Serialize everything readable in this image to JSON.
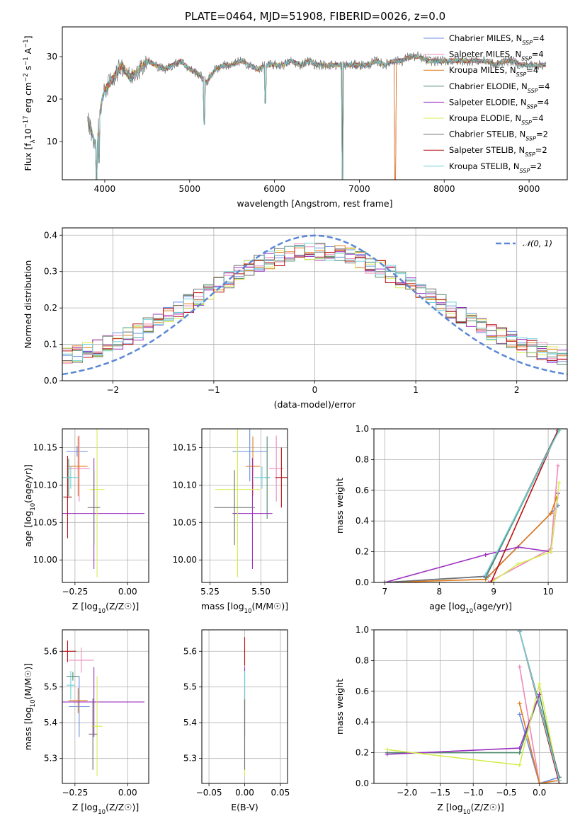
{
  "figure": {
    "title": "PLATE=0464, MJD=51908, FIBERID=0026, z=0.0"
  },
  "series_names": [
    "Chabrier MILES, N_SSP=4",
    "Salpeter MILES, N_SSP=4",
    "Kroupa MILES, N_SSP=4",
    "Chabrier ELODIE, N_SSP=4",
    "Salpeter ELODIE, N_SSP=4",
    "Kroupa ELODIE, N_SSP=4",
    "Chabrier STELIB, N_SSP=2",
    "Salpeter STELIB, N_SSP=2",
    "Kroupa STELIB, N_SSP=2"
  ],
  "colors": [
    "#6a8ee0",
    "#ee88bb",
    "#e07b1a",
    "#4b8a6a",
    "#9b30c0",
    "#d6ec50",
    "#707070",
    "#b81212",
    "#70d0d8"
  ],
  "chart_data": [
    {
      "id": "spectrum",
      "type": "line",
      "title": "PLATE=0464, MJD=51908, FIBERID=0026, z=0.0",
      "xlabel": "wavelength [Angstrom, rest frame]",
      "ylabel": "Flux [f_λ10^-17 erg cm^-2 s^-1 A^-1]",
      "xlim": [
        3500,
        9450
      ],
      "ylim": [
        1,
        37
      ],
      "xticks": [
        4000,
        5000,
        6000,
        7000,
        8000,
        9000
      ],
      "yticks": [
        10,
        20,
        30
      ],
      "grid": false,
      "legend": "top-right",
      "legend_entries": [
        "Chabrier MILES, N_SSP=4",
        "Salpeter MILES, N_SSP=4",
        "Kroupa MILES, N_SSP=4",
        "Chabrier ELODIE, N_SSP=4",
        "Salpeter ELODIE, N_SSP=4",
        "Kroupa ELODIE, N_SSP=4",
        "Chabrier STELIB, N_SSP=2",
        "Salpeter STELIB, N_SSP=2",
        "Kroupa STELIB, N_SSP=2"
      ],
      "x": [
        3800,
        3850,
        3900,
        3950,
        4000,
        4100,
        4200,
        4300,
        4400,
        4500,
        4600,
        4700,
        4800,
        4900,
        5000,
        5100,
        5200,
        5300,
        5400,
        5500,
        5600,
        5700,
        5800,
        5900,
        6000,
        6100,
        6200,
        6300,
        6400,
        6500,
        6600,
        6700,
        6800,
        6900,
        7000,
        7100,
        7200,
        7300,
        7400,
        7500,
        7600,
        7700,
        7800,
        7900,
        8000,
        8100,
        8200,
        8300,
        8400,
        8500,
        8600,
        8700,
        8800,
        8900,
        9000,
        9100,
        9200
      ],
      "y": [
        15,
        12,
        8,
        18,
        22,
        25,
        28,
        25,
        27,
        29,
        28,
        27,
        28,
        29,
        27,
        26,
        24,
        27,
        28,
        28,
        29,
        28,
        27,
        28,
        28,
        28,
        29,
        28,
        29,
        28,
        28,
        28,
        28,
        28,
        28,
        28,
        29,
        28,
        29,
        29,
        30,
        30,
        29,
        29,
        29,
        29,
        29,
        29,
        29,
        29,
        28,
        29,
        29,
        28,
        28,
        28,
        28
      ],
      "dips": [
        [
          3900,
          1
        ],
        [
          3933,
          5
        ],
        [
          5170,
          14
        ],
        [
          5890,
          19
        ],
        [
          6800,
          1
        ],
        [
          7420,
          1
        ]
      ]
    },
    {
      "id": "residuals",
      "type": "line",
      "xlabel": "(data-model)/error",
      "ylabel": "Normed distribution",
      "xlim": [
        -2.5,
        2.5
      ],
      "ylim": [
        0,
        0.42
      ],
      "xticks": [
        -2,
        -1,
        0,
        1,
        2
      ],
      "yticks": [
        0.0,
        0.1,
        0.2,
        0.3,
        0.4
      ],
      "grid": true,
      "legend": "top-right",
      "legend_entries": [
        "𝒩(0, 1)"
      ],
      "gaussian": {
        "mean": 0,
        "sigma": 1
      },
      "histogram_bin_width": 0.1,
      "histogram_shape": {
        "peak": 0.32,
        "sigma": 1.15,
        "floor": 0.035
      }
    },
    {
      "id": "age-vs-Z",
      "type": "scatter",
      "xlabel": "Z [log10(Z/Z☉)]",
      "ylabel": "age  [log10(age/yr)]",
      "xlim": [
        -0.31,
        0.1
      ],
      "ylim": [
        9.97,
        10.175
      ],
      "xticks": [
        -0.25,
        0.0
      ],
      "yticks": [
        10.0,
        10.05,
        10.1,
        10.15
      ],
      "grid": true,
      "points": [
        {
          "series": 0,
          "x": -0.24,
          "y": 10.145,
          "xerr": 0.05,
          "yerr": 0.007
        },
        {
          "series": 1,
          "x": -0.23,
          "y": 10.122,
          "xerr": 0.05,
          "yerr": 0.044
        },
        {
          "series": 2,
          "x": -0.235,
          "y": 10.125,
          "xerr": 0.045,
          "yerr": 0.04
        },
        {
          "series": 3,
          "x": -0.28,
          "y": 10.11,
          "xerr": 0.013,
          "yerr": 0.025
        },
        {
          "series": 4,
          "x": -0.16,
          "y": 10.062,
          "xerr": 0.24,
          "yerr": 0.074
        },
        {
          "series": 5,
          "x": -0.145,
          "y": 10.094,
          "xerr": 0.035,
          "yerr": 0.117
        },
        {
          "series": 6,
          "x": -0.16,
          "y": 10.07,
          "xerr": 0.03,
          "yerr": 0.05
        },
        {
          "series": 7,
          "x": -0.285,
          "y": 10.084,
          "xerr": 0.02,
          "yerr": 0.055
        },
        {
          "series": 8,
          "x": -0.27,
          "y": 10.11,
          "xerr": 0.04,
          "yerr": 0.015
        }
      ]
    },
    {
      "id": "age-vs-mass",
      "type": "scatter",
      "xlabel": "mass [log10(M/M☉)]",
      "ylabel": "",
      "xlim": [
        5.21,
        5.63
      ],
      "ylim": [
        9.97,
        10.175
      ],
      "xticks": [
        5.25,
        5.5
      ],
      "yticks": [
        10.0,
        10.05,
        10.1,
        10.15
      ],
      "grid": true,
      "points": [
        {
          "series": 0,
          "x": 5.445,
          "y": 10.145,
          "xerr": 0.085,
          "yerr": 0.04
        },
        {
          "series": 1,
          "x": 5.575,
          "y": 10.122,
          "xerr": 0.035,
          "yerr": 0.044
        },
        {
          "series": 2,
          "x": 5.46,
          "y": 10.125,
          "xerr": 0.035,
          "yerr": 0.04
        },
        {
          "series": 3,
          "x": 5.53,
          "y": 10.11,
          "xerr": 0.012,
          "yerr": 0.055
        },
        {
          "series": 4,
          "x": 5.458,
          "y": 10.062,
          "xerr": 0.098,
          "yerr": 0.074
        },
        {
          "series": 5,
          "x": 5.385,
          "y": 10.094,
          "xerr": 0.11,
          "yerr": 0.117
        },
        {
          "series": 6,
          "x": 5.37,
          "y": 10.07,
          "xerr": 0.1,
          "yerr": 0.05
        },
        {
          "series": 7,
          "x": 5.6,
          "y": 10.11,
          "xerr": 0.03,
          "yerr": 0.04
        },
        {
          "series": 8,
          "x": 5.505,
          "y": 10.11,
          "xerr": 0.04,
          "yerr": 0.015
        }
      ]
    },
    {
      "id": "massweight-vs-age",
      "type": "line",
      "xlabel": "age  [log10(age/yr)]",
      "ylabel": "mass weight",
      "xlim": [
        6.8,
        10.35
      ],
      "ylim": [
        0,
        1.0
      ],
      "xticks": [
        7,
        8,
        9,
        10
      ],
      "yticks": [
        0.0,
        0.2,
        0.4,
        0.6,
        0.8,
        1.0
      ],
      "grid": true,
      "series": [
        {
          "series": 0,
          "x": [
            7.0,
            8.9,
            10.05,
            10.18
          ],
          "y": [
            0.0,
            0.04,
            0.45,
            0.5
          ]
        },
        {
          "series": 1,
          "x": [
            8.9,
            10.05,
            10.18
          ],
          "y": [
            0.0,
            0.22,
            0.76
          ]
        },
        {
          "series": 2,
          "x": [
            7.0,
            8.85,
            10.05,
            10.15
          ],
          "y": [
            0.0,
            0.02,
            0.45,
            0.55
          ]
        },
        {
          "series": 3,
          "x": [
            8.85,
            10.18
          ],
          "y": [
            0.03,
            0.98
          ]
        },
        {
          "series": 4,
          "x": [
            7.0,
            8.85,
            9.45,
            10.05,
            10.18
          ],
          "y": [
            0.0,
            0.18,
            0.23,
            0.2,
            0.58
          ]
        },
        {
          "series": 5,
          "x": [
            8.95,
            9.45,
            10.05,
            10.2
          ],
          "y": [
            0.0,
            0.12,
            0.2,
            0.65
          ]
        },
        {
          "series": 6,
          "x": [
            7.0,
            8.85,
            10.18
          ],
          "y": [
            0.0,
            0.04,
            0.99
          ]
        },
        {
          "series": 7,
          "x": [
            8.95,
            10.18
          ],
          "y": [
            0.0,
            0.99
          ]
        },
        {
          "series": 8,
          "x": [
            8.85,
            10.2
          ],
          "y": [
            0.05,
            0.99
          ]
        }
      ]
    },
    {
      "id": "mass-vs-Z",
      "type": "scatter",
      "xlabel": "Z [log10(Z/Z☉)]",
      "ylabel": "mass [log10(M/M☉)]",
      "xlim": [
        -0.31,
        0.1
      ],
      "ylim": [
        5.23,
        5.66
      ],
      "xticks": [
        -0.25,
        0.0
      ],
      "yticks": [
        5.3,
        5.4,
        5.5,
        5.6
      ],
      "grid": true,
      "points": [
        {
          "series": 0,
          "x": -0.23,
          "y": 5.445,
          "xerr": 0.05,
          "yerr": 0.085
        },
        {
          "series": 1,
          "x": -0.22,
          "y": 5.575,
          "xerr": 0.06,
          "yerr": 0.035
        },
        {
          "series": 2,
          "x": -0.235,
          "y": 5.462,
          "xerr": 0.045,
          "yerr": 0.035
        },
        {
          "series": 3,
          "x": -0.26,
          "y": 5.53,
          "xerr": 0.03,
          "yerr": 0.012
        },
        {
          "series": 4,
          "x": -0.16,
          "y": 5.458,
          "xerr": 0.24,
          "yerr": 0.098
        },
        {
          "series": 5,
          "x": -0.145,
          "y": 5.39,
          "xerr": 0.025,
          "yerr": 0.14
        },
        {
          "series": 6,
          "x": -0.165,
          "y": 5.368,
          "xerr": 0.02,
          "yerr": 0.1
        },
        {
          "series": 7,
          "x": -0.285,
          "y": 5.6,
          "xerr": 0.04,
          "yerr": 0.03
        },
        {
          "series": 8,
          "x": -0.27,
          "y": 5.505,
          "xerr": 0.02,
          "yerr": 0.04
        }
      ]
    },
    {
      "id": "mass-vs-EBV",
      "type": "scatter",
      "xlabel": "E(B-V)",
      "ylabel": "",
      "xlim": [
        -0.06,
        0.06
      ],
      "ylim": [
        5.23,
        5.66
      ],
      "xticks": [
        -0.05,
        0.0,
        0.05
      ],
      "yticks": [
        5.3,
        5.4,
        5.5,
        5.6
      ],
      "grid": true,
      "points": [
        {
          "series": 0,
          "x": 0.0,
          "y": 5.445,
          "xerr": 0,
          "yerr": 0.085
        },
        {
          "series": 1,
          "x": 0.0,
          "y": 5.575,
          "xerr": 0,
          "yerr": 0.035
        },
        {
          "series": 2,
          "x": 0.0,
          "y": 5.462,
          "xerr": 0,
          "yerr": 0.035
        },
        {
          "series": 3,
          "x": 0.0,
          "y": 5.53,
          "xerr": 0,
          "yerr": 0.012
        },
        {
          "series": 4,
          "x": 0.0,
          "y": 5.458,
          "xerr": 0,
          "yerr": 0.098
        },
        {
          "series": 5,
          "x": 0.0,
          "y": 5.39,
          "xerr": 0,
          "yerr": 0.14
        },
        {
          "series": 6,
          "x": 0.0,
          "y": 5.368,
          "xerr": 0,
          "yerr": 0.1
        },
        {
          "series": 7,
          "x": 0.0,
          "y": 5.6,
          "xerr": 0,
          "yerr": 0.04
        },
        {
          "series": 8,
          "x": 0.0,
          "y": 5.505,
          "xerr": 0,
          "yerr": 0.04
        }
      ]
    },
    {
      "id": "massweight-vs-Z",
      "type": "line",
      "xlabel": "Z [log10(Z/Z☉)]",
      "ylabel": "mass weight",
      "xlim": [
        -2.5,
        0.42
      ],
      "ylim": [
        0,
        1.0
      ],
      "xticks": [
        -2.0,
        -1.5,
        -1.0,
        -0.5,
        0.0
      ],
      "yticks": [
        0.0,
        0.2,
        0.4,
        0.6,
        0.8,
        1.0
      ],
      "grid": true,
      "series": [
        {
          "series": 0,
          "x": [
            -0.3,
            0.0,
            0.3
          ],
          "y": [
            0.45,
            0.0,
            0.04
          ]
        },
        {
          "series": 1,
          "x": [
            -0.3,
            0.0
          ],
          "y": [
            0.76,
            0.0
          ]
        },
        {
          "series": 2,
          "x": [
            -0.3,
            0.0,
            0.3
          ],
          "y": [
            0.52,
            0.0,
            0.02
          ]
        },
        {
          "series": 3,
          "x": [
            -2.3,
            -0.3,
            0.0,
            0.3
          ],
          "y": [
            0.2,
            0.2,
            0.58,
            0.0
          ]
        },
        {
          "series": 4,
          "x": [
            -2.3,
            -0.3,
            0.0
          ],
          "y": [
            0.19,
            0.23,
            0.58
          ]
        },
        {
          "series": 5,
          "x": [
            -2.3,
            -0.3,
            0.0,
            0.3
          ],
          "y": [
            0.22,
            0.12,
            0.65,
            0.0
          ]
        },
        {
          "series": 6,
          "x": [
            -0.3,
            0.3
          ],
          "y": [
            0.99,
            0.04
          ]
        },
        {
          "series": 7,
          "x": [
            -0.3,
            0.3
          ],
          "y": [
            0.99,
            0.0
          ]
        },
        {
          "series": 8,
          "x": [
            -0.3,
            0.3
          ],
          "y": [
            0.99,
            0.02
          ]
        }
      ]
    }
  ]
}
